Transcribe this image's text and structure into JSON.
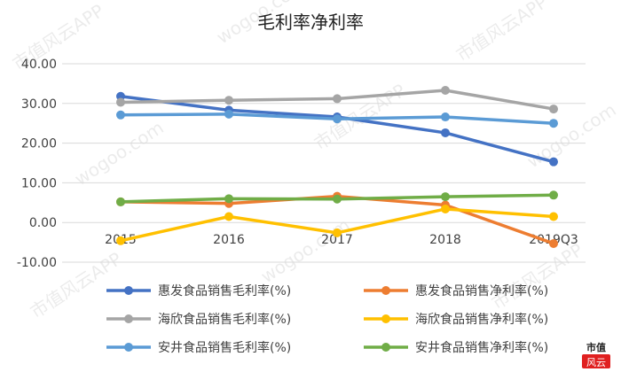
{
  "chart_data": {
    "type": "line",
    "title": "毛利率净利率",
    "categories": [
      "2015",
      "2016",
      "2017",
      "2018",
      "2019Q3"
    ],
    "ylim": [
      -10,
      40
    ],
    "yticks": [
      -10,
      0,
      10,
      20,
      30,
      40
    ],
    "ytick_labels": [
      "-10.00",
      "0.00",
      "10.00",
      "20.00",
      "30.00",
      "40.00"
    ],
    "grid": true,
    "legend_position": "bottom",
    "series": [
      {
        "name": "惠发食品销售毛利率(%)",
        "color": "#4472C4",
        "values": [
          31.8,
          28.3,
          26.6,
          22.6,
          15.3
        ]
      },
      {
        "name": "惠发食品销售净利率(%)",
        "color": "#ED7D31",
        "values": [
          5.2,
          4.8,
          6.6,
          4.4,
          -5.3
        ]
      },
      {
        "name": "海欣食品销售毛利率(%)",
        "color": "#A5A5A5",
        "values": [
          30.3,
          30.8,
          31.2,
          33.3,
          28.6
        ]
      },
      {
        "name": "海欣食品销售净利率(%)",
        "color": "#FFC000",
        "values": [
          -4.6,
          1.5,
          -2.6,
          3.4,
          1.5
        ]
      },
      {
        "name": "安井食品销售毛利率(%)",
        "color": "#5B9BD5",
        "values": [
          27.1,
          27.3,
          26.1,
          26.6,
          25.0
        ]
      },
      {
        "name": "安井食品销售净利率(%)",
        "color": "#70AD47",
        "values": [
          5.2,
          6.0,
          5.9,
          6.5,
          6.9
        ]
      }
    ]
  },
  "watermark": {
    "text_left": "wogoo.com",
    "text_right": "市值风云APP",
    "logo_top": "市值",
    "logo_bottom": "风云"
  }
}
